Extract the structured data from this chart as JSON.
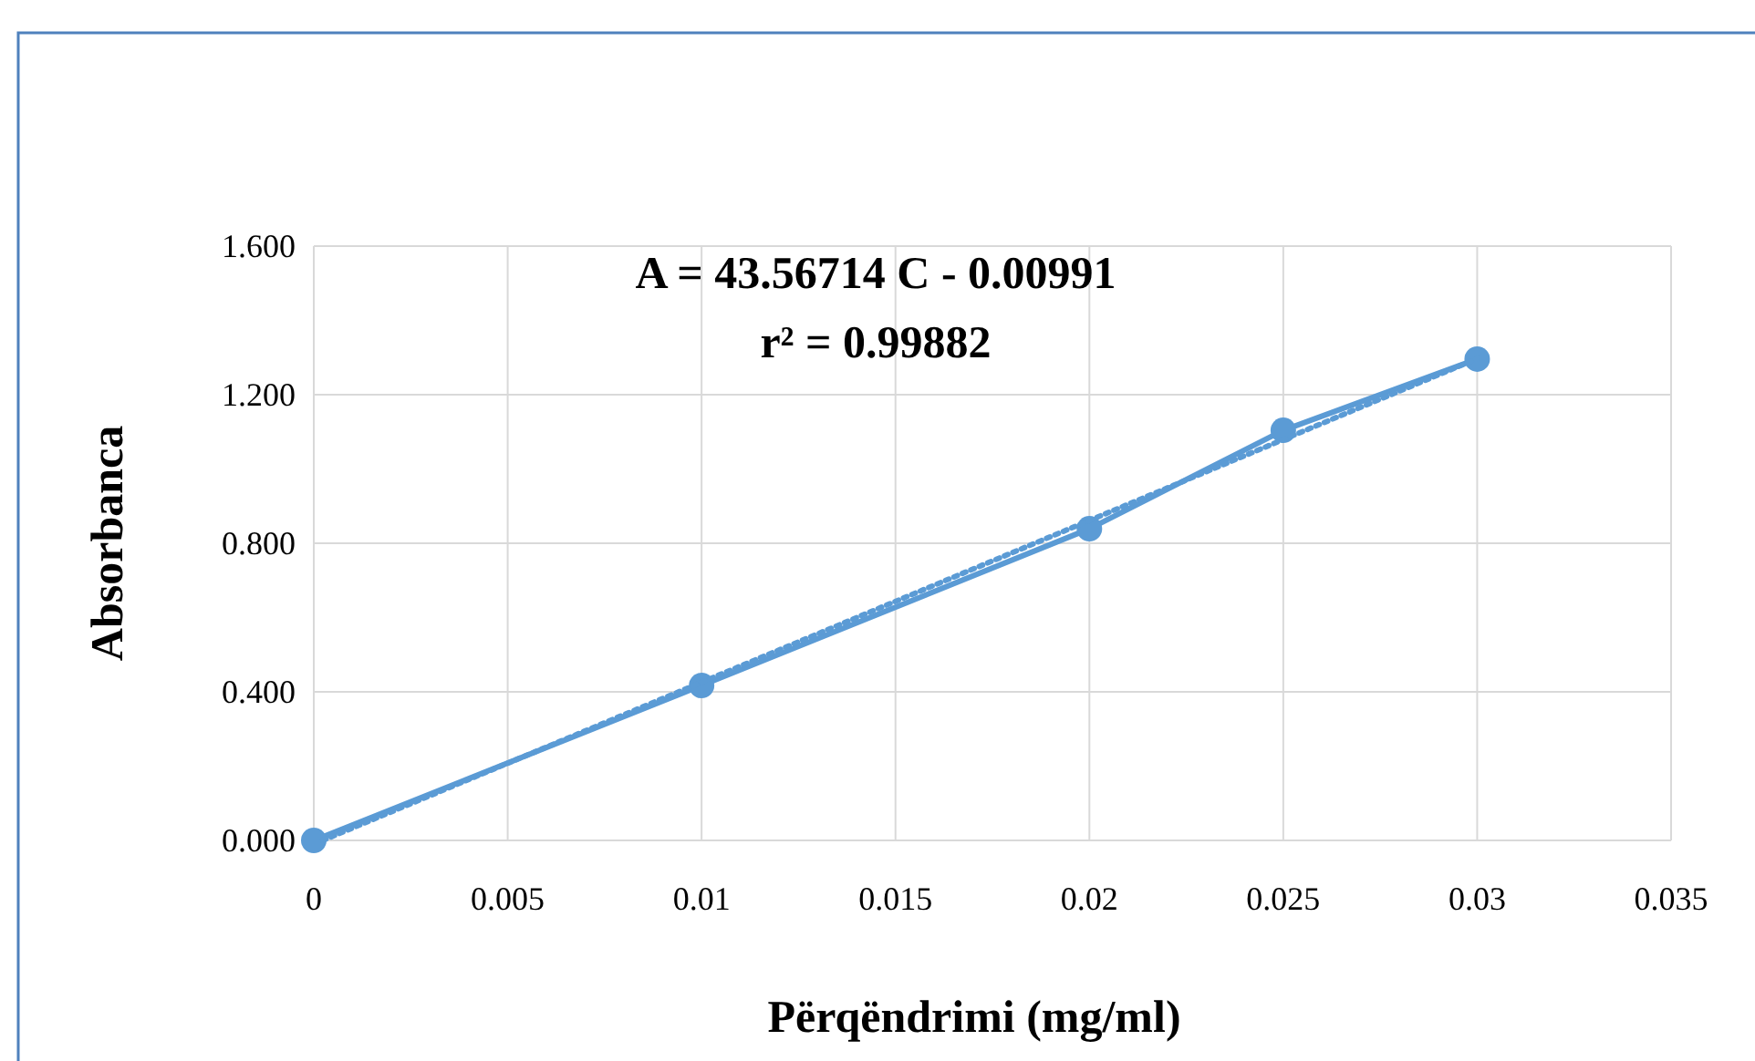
{
  "chart_data": {
    "type": "line",
    "xlabel": "Përqëndrimi (mg/ml)",
    "ylabel": "Absorbanca",
    "annotations": [
      "A = 43.56714 C - 0.00991",
      "r² = 0.99882"
    ],
    "xlim": [
      0,
      0.035
    ],
    "xticks": [
      0,
      0.005,
      0.01,
      0.015,
      0.02,
      0.025,
      0.03,
      0.035
    ],
    "ylim": [
      0,
      1.6
    ],
    "yticks": [
      {
        "value": 0,
        "label": "0.000"
      },
      {
        "value": 0.4,
        "label": "0.400"
      },
      {
        "value": 0.8,
        "label": "0.800"
      },
      {
        "value": 1.2,
        "label": "1.200"
      },
      {
        "value": 1.6,
        "label": "1.600"
      }
    ],
    "grid": true,
    "series": [
      {
        "color": "#5b9bd5",
        "marker": "circle",
        "line_style": "solid",
        "x": [
          0,
          0.01,
          0.02,
          0.025,
          0.03
        ],
        "values": [
          0,
          0.417,
          0.839,
          1.104,
          1.296
        ]
      },
      {
        "type": "line",
        "color": "#5b9bd5",
        "marker": "none",
        "line_style": "dotted",
        "x": [
          0.00023,
          0.03
        ],
        "values": [
          0,
          1.297
        ]
      }
    ]
  }
}
